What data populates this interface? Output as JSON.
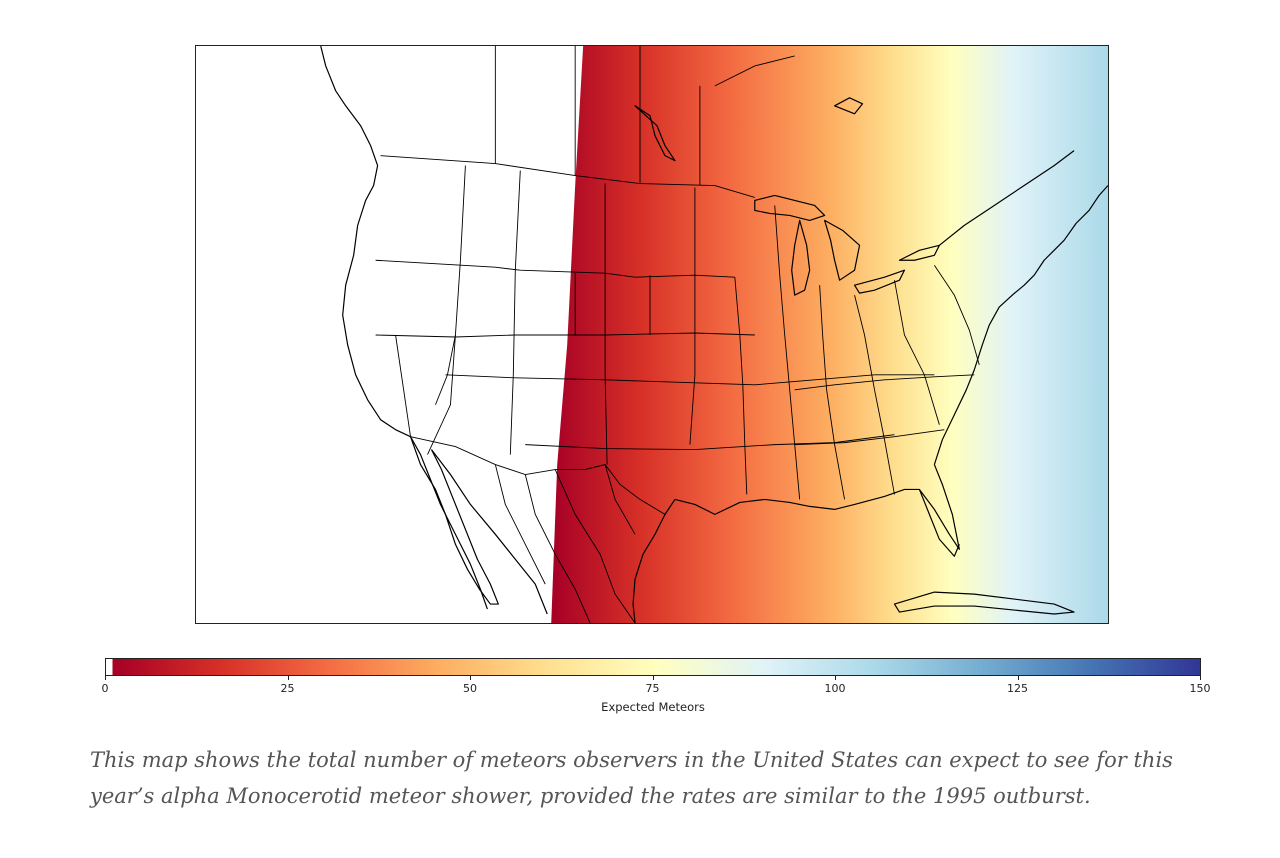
{
  "map": {
    "description_level": "contiguous United States with southern Canada and northern Mexico",
    "gradient_colors": [
      "#ffffff",
      "#a50026",
      "#d73027",
      "#f46d43",
      "#fdae61",
      "#fee090",
      "#ffffbf",
      "#e0f3f8",
      "#abd9e9"
    ],
    "shading": {
      "zero_region": "west of roughly the Rocky Mountain front",
      "max_visible_value": "about 100 on the east coast"
    }
  },
  "colorbar": {
    "label": "Expected Meteors",
    "min": 0,
    "max": 150,
    "ticks": [
      "0",
      "25",
      "50",
      "75",
      "100",
      "125",
      "150"
    ],
    "colors": [
      "#ffffff",
      "#a50026",
      "#d73027",
      "#f46d43",
      "#fdae61",
      "#fee090",
      "#ffffbf",
      "#e0f3f8",
      "#abd9e9",
      "#74add1",
      "#4575b4",
      "#313695"
    ]
  },
  "caption": "This map shows the total number of meteors observers in the United States can expect to see for this year’s alpha Monocerotid meteor shower, provided the rates are similar to the 1995 outburst."
}
